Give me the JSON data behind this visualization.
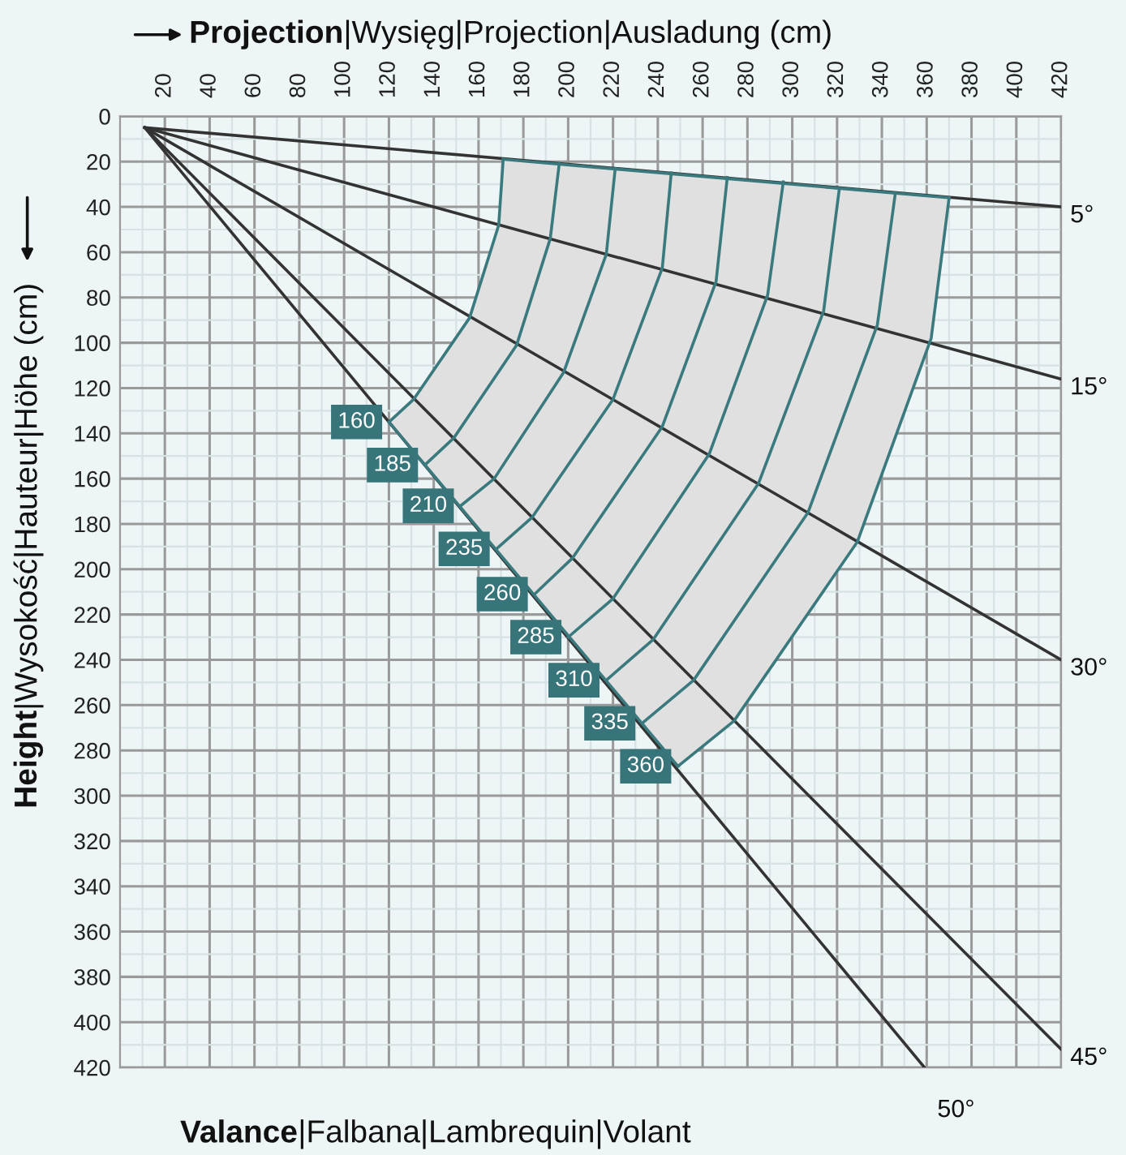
{
  "chart_data": {
    "type": "line",
    "xlabel": "Projection|Wysięg|Projection|Ausladung (cm)",
    "ylabel": "Height|Wysokość|Hauteur|Höhe (cm)",
    "xlim": [
      0,
      420
    ],
    "ylim": [
      420,
      0
    ],
    "xticks": [
      20,
      40,
      60,
      80,
      100,
      120,
      140,
      160,
      180,
      200,
      220,
      240,
      260,
      280,
      300,
      320,
      340,
      360,
      380,
      400,
      420
    ],
    "yticks": [
      0,
      20,
      40,
      60,
      80,
      100,
      120,
      140,
      160,
      180,
      200,
      220,
      240,
      260,
      280,
      300,
      320,
      340,
      360,
      380,
      400,
      420
    ],
    "grid": true,
    "series": [
      {
        "color": "#333333",
        "x": [
          11,
          420
        ],
        "values": [
          5,
          40
        ]
      },
      {
        "color": "#333333",
        "x": [
          11,
          420
        ],
        "values": [
          5,
          116
        ]
      },
      {
        "color": "#333333",
        "x": [
          11,
          420
        ],
        "values": [
          5,
          240
        ]
      },
      {
        "color": "#333333",
        "x": [
          11,
          420
        ],
        "values": [
          5,
          412
        ]
      },
      {
        "color": "#333333",
        "x": [
          11,
          359
        ],
        "values": [
          5,
          420
        ]
      },
      {
        "color": "#3a7a7e",
        "x": [
          171,
          169,
          156,
          131,
          120
        ],
        "values": [
          19,
          48,
          89,
          125,
          135
        ]
      },
      {
        "color": "#3a7a7e",
        "x": [
          196,
          192,
          177,
          149,
          136
        ],
        "values": [
          21,
          54,
          101,
          142,
          154
        ]
      },
      {
        "color": "#3a7a7e",
        "x": [
          221,
          217,
          198,
          167,
          152
        ],
        "values": [
          23,
          61,
          113,
          160,
          172
        ]
      },
      {
        "color": "#3a7a7e",
        "x": [
          246,
          242,
          220,
          184,
          168
        ],
        "values": [
          25,
          67,
          125,
          177,
          191
        ]
      },
      {
        "color": "#3a7a7e",
        "x": [
          271,
          266,
          242,
          202,
          185
        ],
        "values": [
          27,
          73,
          137,
          195,
          211
        ]
      },
      {
        "color": "#3a7a7e",
        "x": [
          296,
          289,
          263,
          220,
          200
        ],
        "values": [
          29,
          79,
          149,
          213,
          230
        ]
      },
      {
        "color": "#3a7a7e",
        "x": [
          321,
          314,
          285,
          238,
          217
        ],
        "values": [
          32,
          86,
          162,
          231,
          249
        ]
      },
      {
        "color": "#3a7a7e",
        "x": [
          346,
          338,
          307,
          256,
          233
        ],
        "values": [
          34,
          92,
          175,
          249,
          268
        ]
      },
      {
        "color": "#3a7a7e",
        "x": [
          370,
          362,
          329,
          274,
          249
        ],
        "values": [
          36,
          98,
          188,
          267,
          287
        ]
      },
      {
        "color": "#3a7a7e",
        "x": [
          171,
          370
        ],
        "values": [
          19,
          36
        ]
      },
      {
        "color": "#3a7a7e",
        "x": [
          120,
          249
        ],
        "values": [
          135,
          287
        ]
      }
    ],
    "annotations": [
      {
        "text": "160",
        "x": 120,
        "y": 135
      },
      {
        "text": "185",
        "x": 136,
        "y": 154
      },
      {
        "text": "210",
        "x": 152,
        "y": 172
      },
      {
        "text": "235",
        "x": 168,
        "y": 191
      },
      {
        "text": "260",
        "x": 185,
        "y": 211
      },
      {
        "text": "285",
        "x": 200,
        "y": 230
      },
      {
        "text": "310",
        "x": 217,
        "y": 249
      },
      {
        "text": "335",
        "x": 233,
        "y": 268
      },
      {
        "text": "360",
        "x": 249,
        "y": 287
      },
      {
        "text": "5°",
        "x": 420,
        "y": 40
      },
      {
        "text": "15°",
        "x": 420,
        "y": 116
      },
      {
        "text": "30°",
        "x": 420,
        "y": 240
      },
      {
        "text": "45°",
        "x": 420,
        "y": 412
      },
      {
        "text": "50°",
        "x": 359,
        "y": 420
      },
      "Valance|Falbana|Lambrequin|Volant"
    ]
  }
}
